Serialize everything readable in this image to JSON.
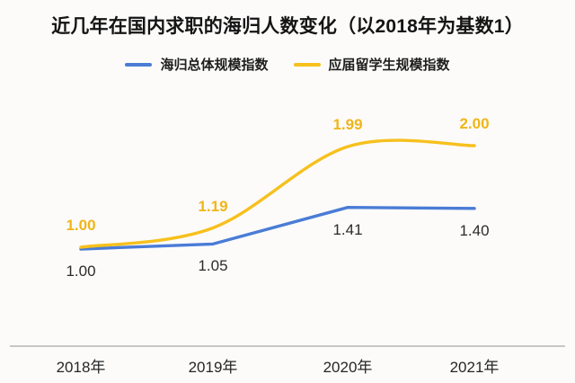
{
  "title": "近几年在国内求职的海归人数变化（以2018年为基数1）",
  "legend": [
    {
      "label": "海归总体规模指数",
      "color": "#4a7cd6"
    },
    {
      "label": "应届留学生规模指数",
      "color": "#f7c01d"
    }
  ],
  "chart_data": {
    "type": "line",
    "title": "近几年在国内求职的海归人数变化（以2018年为基数1）",
    "categories": [
      "2018年",
      "2019年",
      "2020年",
      "2021年"
    ],
    "series": [
      {
        "name": "海归总体规模指数",
        "values": [
          1.0,
          1.05,
          1.41,
          1.4
        ],
        "labels": [
          "1.00",
          "1.05",
          "1.41",
          "1.40"
        ],
        "color": "#4a7cd6",
        "label_color": "#2b2b2b",
        "label_bold": false,
        "label_position": "below",
        "smooth": false
      },
      {
        "name": "应届留学生规模指数",
        "values": [
          1.0,
          1.19,
          1.99,
          2.0
        ],
        "labels": [
          "1.00",
          "1.19",
          "1.99",
          "2.00"
        ],
        "color": "#f7c01d",
        "label_color": "#f0b518",
        "label_bold": true,
        "label_position": "above",
        "smooth": true
      }
    ],
    "xlabel": "",
    "ylabel": "",
    "ylim": [
      1.0,
      2.0
    ],
    "baseline_note": "以2018年为基数1",
    "grid": false,
    "legend_position": "top",
    "axis_line_color": "#c6c6c6",
    "background_color": "#fcfbfa"
  }
}
